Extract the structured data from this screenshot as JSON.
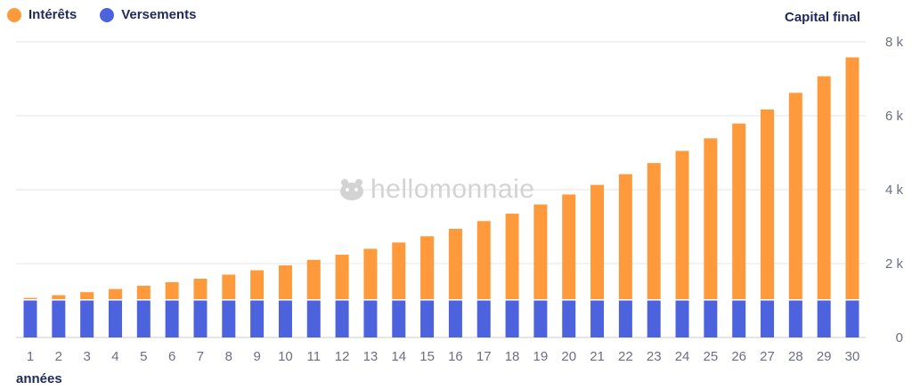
{
  "legend": {
    "interets_label": "Intérêts",
    "versements_label": "Versements"
  },
  "watermark": {
    "text": "hellomonnaie",
    "icon": "hippo-logo-icon"
  },
  "colors": {
    "interets": "#FF9A3C",
    "versements": "#4C63DD",
    "grid": "#e6e6e6",
    "axis_text": "#6b7080",
    "title_text": "#1f2a5a"
  },
  "chart_data": {
    "type": "bar",
    "stacked": true,
    "title": "",
    "xlabel": "années",
    "ylabel": "Capital final",
    "y_axis_position": "right",
    "ylim": [
      0,
      8000
    ],
    "yticks": [
      0,
      2000,
      4000,
      6000,
      8000
    ],
    "ytick_labels": [
      "0",
      "2 k",
      "4 k",
      "6 k",
      "8 k"
    ],
    "grid": true,
    "legend_position": "top-left",
    "categories": [
      "1",
      "2",
      "3",
      "4",
      "5",
      "6",
      "7",
      "8",
      "9",
      "10",
      "11",
      "12",
      "13",
      "14",
      "15",
      "16",
      "17",
      "18",
      "19",
      "20",
      "21",
      "22",
      "23",
      "24",
      "25",
      "26",
      "27",
      "28",
      "29",
      "30"
    ],
    "series": [
      {
        "name": "Versements",
        "color": "#4C63DD",
        "values": [
          1000,
          1000,
          1000,
          1000,
          1000,
          1000,
          1000,
          1000,
          1000,
          1000,
          1000,
          1000,
          1000,
          1000,
          1000,
          1000,
          1000,
          1000,
          1000,
          1000,
          1000,
          1000,
          1000,
          1000,
          1000,
          1000,
          1000,
          1000,
          1000,
          1000
        ]
      },
      {
        "name": "Intérêts",
        "color": "#FF9A3C",
        "values": [
          70,
          145,
          225,
          310,
          400,
          495,
          590,
          700,
          820,
          950,
          1100,
          1240,
          1400,
          1570,
          1740,
          1940,
          2150,
          2350,
          2600,
          2870,
          3130,
          3420,
          3720,
          4050,
          4390,
          4790,
          5170,
          5620,
          6070,
          6580
        ]
      }
    ]
  }
}
